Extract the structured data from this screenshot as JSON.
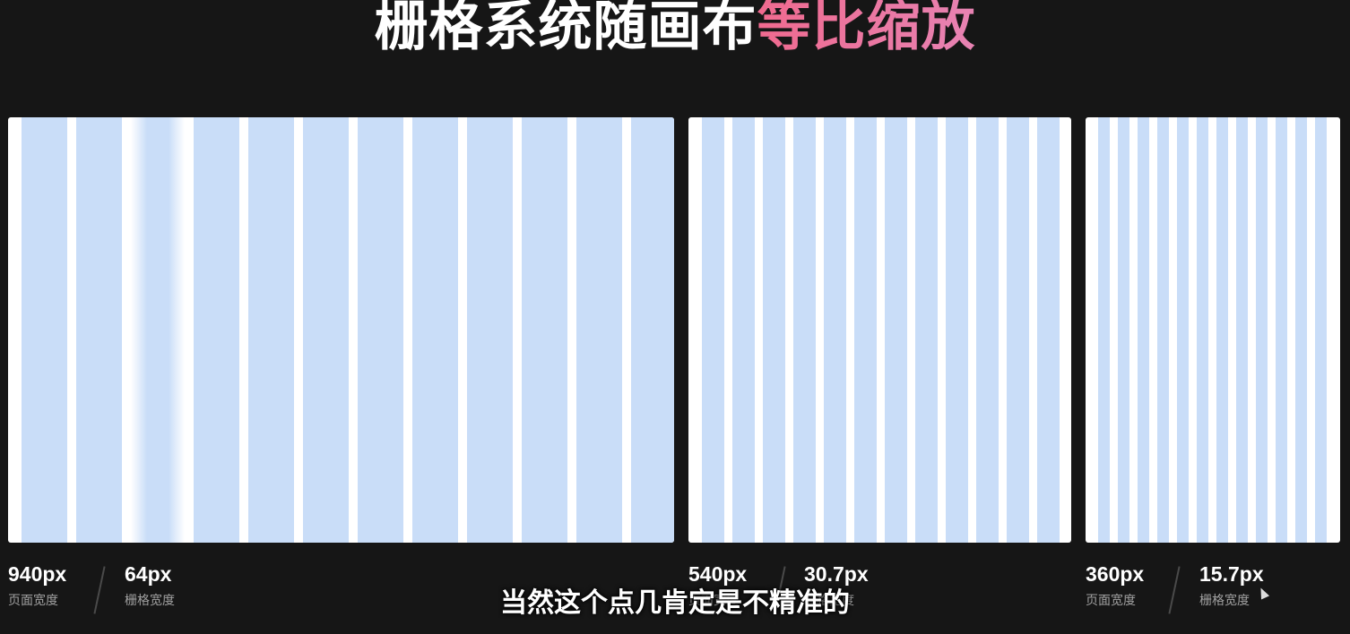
{
  "title": {
    "plain": "栅格系统随画布",
    "accent": "等比缩放"
  },
  "subtitle": "当然这个点几肯定是不精准的",
  "colors": {
    "background": "#161616",
    "panel": "#ffffff",
    "column": "#c9ddf8",
    "accent_start": "#f06a8f",
    "accent_end": "#e783b3",
    "label": "#a0a0a0"
  },
  "grids": [
    {
      "page_width_value": "940px",
      "page_width_label": "页面宽度",
      "column_width_value": "64px",
      "column_width_label": "栅格宽度",
      "column_count": 12
    },
    {
      "page_width_value": "540px",
      "page_width_label": "页面宽度",
      "column_width_value": "30.7px",
      "column_width_label": "栅格宽度",
      "column_count": 12
    },
    {
      "page_width_value": "360px",
      "page_width_label": "页面宽度",
      "column_width_value": "15.7px",
      "column_width_label": "栅格宽度",
      "column_count": 12
    }
  ],
  "icons": {
    "cursor": "mouse-pointer-icon"
  }
}
